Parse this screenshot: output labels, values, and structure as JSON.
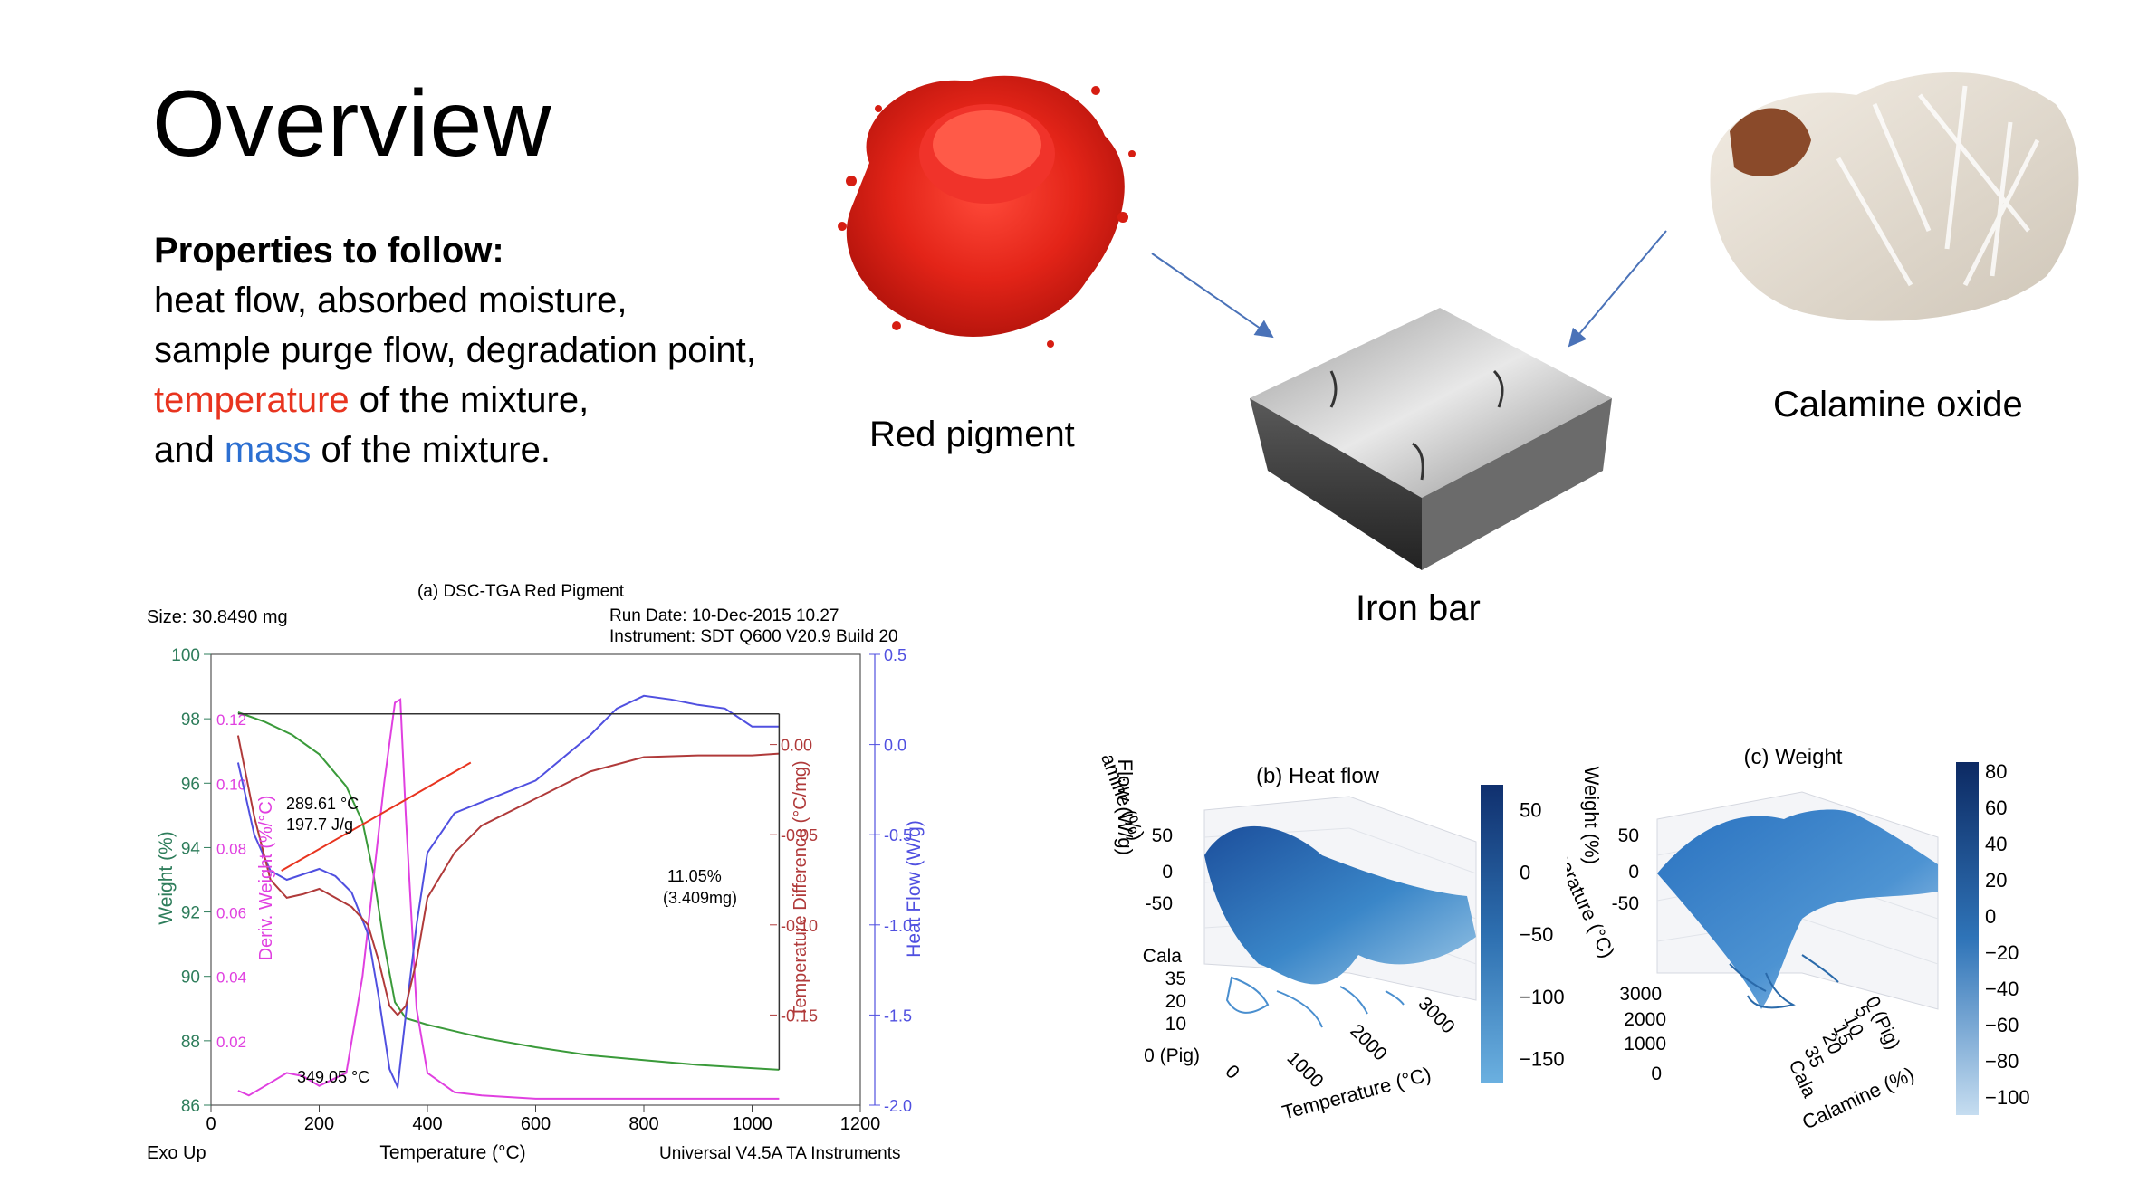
{
  "slide": {
    "title": "Overview",
    "properties": {
      "heading": "Properties to follow:",
      "line1": "heat flow, absorbed moisture,",
      "line2": "sample purge flow, degradation point,",
      "line3_highlight": "temperature",
      "line3_rest": " of the mixture,",
      "line4_prefix": "and ",
      "line4_highlight": "mass",
      "line4_rest": " of the mixture."
    },
    "images": {
      "red_pigment_caption": "Red pigment",
      "iron_bar_caption": "Iron bar",
      "calamine_caption": "Calamine oxide"
    },
    "colors": {
      "temperature": "#e8341f",
      "mass": "#2c6fd1"
    }
  },
  "chart_data": [
    {
      "type": "line",
      "title": "(a) DSC-TGA Red Pigment",
      "header": {
        "size": "Size: 30.8490 mg",
        "run_date": "Run Date: 10-Dec-2015 10.27",
        "instrument": "Instrument: SDT Q600 V20.9 Build 20"
      },
      "footer": {
        "left": "Exo Up",
        "right": "Universal V4.5A TA Instruments"
      },
      "xlabel": "Temperature (°C)",
      "xlim": [
        0,
        1200
      ],
      "xticks": [
        "0",
        "200",
        "400",
        "600",
        "800",
        "1000",
        "1200"
      ],
      "axes": {
        "weight": {
          "label": "Weight (%)",
          "color": "#2e7d5b",
          "lim": [
            86,
            100
          ],
          "ticks": [
            "86",
            "88",
            "90",
            "92",
            "94",
            "96",
            "98",
            "100"
          ]
        },
        "deriv": {
          "label": "Deriv. Weight (%/°C)",
          "color": "#e040e0",
          "lim": [
            0,
            0.14
          ],
          "ticks": [
            "0.02",
            "0.04",
            "0.06",
            "0.08",
            "0.10",
            "0.12"
          ]
        },
        "tempdiff": {
          "label": "Temperature Difference (°C/mg)",
          "color": "#b03a3a",
          "lim": [
            -0.2,
            0.05
          ],
          "ticks": [
            "-0.15",
            "-0.10",
            "-0.05",
            "0.00"
          ]
        },
        "heatflow": {
          "label": "Heat Flow (W/g)",
          "color": "#5050e0",
          "lim": [
            -2.0,
            0.5
          ],
          "ticks": [
            "-2.0",
            "-1.5",
            "-1.0",
            "-0.5",
            "0.0",
            "0.5"
          ]
        }
      },
      "annotations": {
        "peak1_temp": "289.61 °C",
        "peak1_energy": "197.7 J/g",
        "loss_pct": "11.05%",
        "loss_mg": "(3.409mg)",
        "peak2_temp": "349.05 °C"
      },
      "series": [
        {
          "key": "weight",
          "color": "#3a9a3a",
          "x": [
            50,
            100,
            150,
            200,
            250,
            280,
            300,
            320,
            340,
            360,
            380,
            400,
            450,
            500,
            600,
            700,
            800,
            900,
            1000,
            1050
          ],
          "y": [
            98.2,
            97.9,
            97.5,
            96.9,
            95.9,
            94.8,
            93.2,
            91.0,
            89.2,
            88.7,
            88.6,
            88.5,
            88.3,
            88.1,
            87.8,
            87.55,
            87.4,
            87.25,
            87.15,
            87.1
          ]
        },
        {
          "key": "deriv",
          "color": "#e040e0",
          "x": [
            50,
            70,
            100,
            140,
            170,
            200,
            250,
            280,
            300,
            320,
            340,
            350,
            360,
            380,
            400,
            450,
            500,
            600,
            800,
            1000,
            1050
          ],
          "y": [
            0.0045,
            0.003,
            0.006,
            0.01,
            0.009,
            0.006,
            0.01,
            0.04,
            0.07,
            0.1,
            0.125,
            0.126,
            0.09,
            0.03,
            0.01,
            0.004,
            0.003,
            0.002,
            0.002,
            0.002,
            0.002
          ]
        },
        {
          "key": "heatflow",
          "color": "#5050e0",
          "x": [
            50,
            80,
            110,
            140,
            170,
            200,
            230,
            260,
            290,
            310,
            330,
            345,
            360,
            380,
            400,
            450,
            500,
            600,
            700,
            750,
            800,
            850,
            900,
            950,
            1000,
            1050
          ],
          "y": [
            -0.1,
            -0.5,
            -0.7,
            -0.75,
            -0.72,
            -0.69,
            -0.73,
            -0.82,
            -1.05,
            -1.4,
            -1.8,
            -1.9,
            -1.5,
            -1.0,
            -0.6,
            -0.38,
            -0.32,
            -0.2,
            0.05,
            0.2,
            0.27,
            0.25,
            0.22,
            0.2,
            0.1,
            0.1
          ]
        },
        {
          "key": "tempdiff",
          "color": "#b03a3a",
          "x": [
            50,
            80,
            110,
            140,
            170,
            200,
            230,
            260,
            290,
            310,
            330,
            345,
            360,
            380,
            400,
            450,
            500,
            600,
            700,
            800,
            900,
            1000,
            1050
          ],
          "y": [
            0.005,
            -0.04,
            -0.075,
            -0.085,
            -0.083,
            -0.08,
            -0.085,
            -0.09,
            -0.1,
            -0.12,
            -0.145,
            -0.15,
            -0.145,
            -0.12,
            -0.085,
            -0.06,
            -0.045,
            -0.03,
            -0.015,
            -0.007,
            -0.006,
            -0.006,
            -0.005
          ]
        }
      ],
      "baseline_x": [
        130,
        480
      ]
    },
    {
      "type": "surface",
      "title": "(b) Heat flow",
      "zlabel": "Heat Flow (W/g)",
      "ylabel": "Calamine (%)",
      "xlabel": "Temperature (°C)",
      "zticks": [
        "50",
        "0",
        "-50"
      ],
      "yticks": [
        "Cala",
        "35",
        "20",
        "10",
        "0 (Pig)"
      ],
      "xticks": [
        "0",
        "1000",
        "2000",
        "3000"
      ],
      "colorbar": {
        "ticks": [
          "50",
          "0",
          "−50",
          "−100",
          "−150"
        ],
        "lim": [
          -170,
          70
        ]
      }
    },
    {
      "type": "surface",
      "title": "(c) Weight",
      "zlabel": "Weight (%)",
      "ylabel": "Temperature (°C)",
      "xlabel": "Calamine (%)",
      "zticks": [
        "50",
        "0",
        "-50"
      ],
      "yticks": [
        "3000",
        "2000",
        "1000",
        "0"
      ],
      "xticks": [
        "0 (Pig)",
        "5",
        "10",
        "15",
        "20",
        "35",
        "Cala"
      ],
      "colorbar": {
        "ticks": [
          "80",
          "60",
          "40",
          "20",
          "0",
          "−20",
          "−40",
          "−60",
          "−80",
          "−100"
        ],
        "lim": [
          -110,
          85
        ]
      }
    }
  ]
}
